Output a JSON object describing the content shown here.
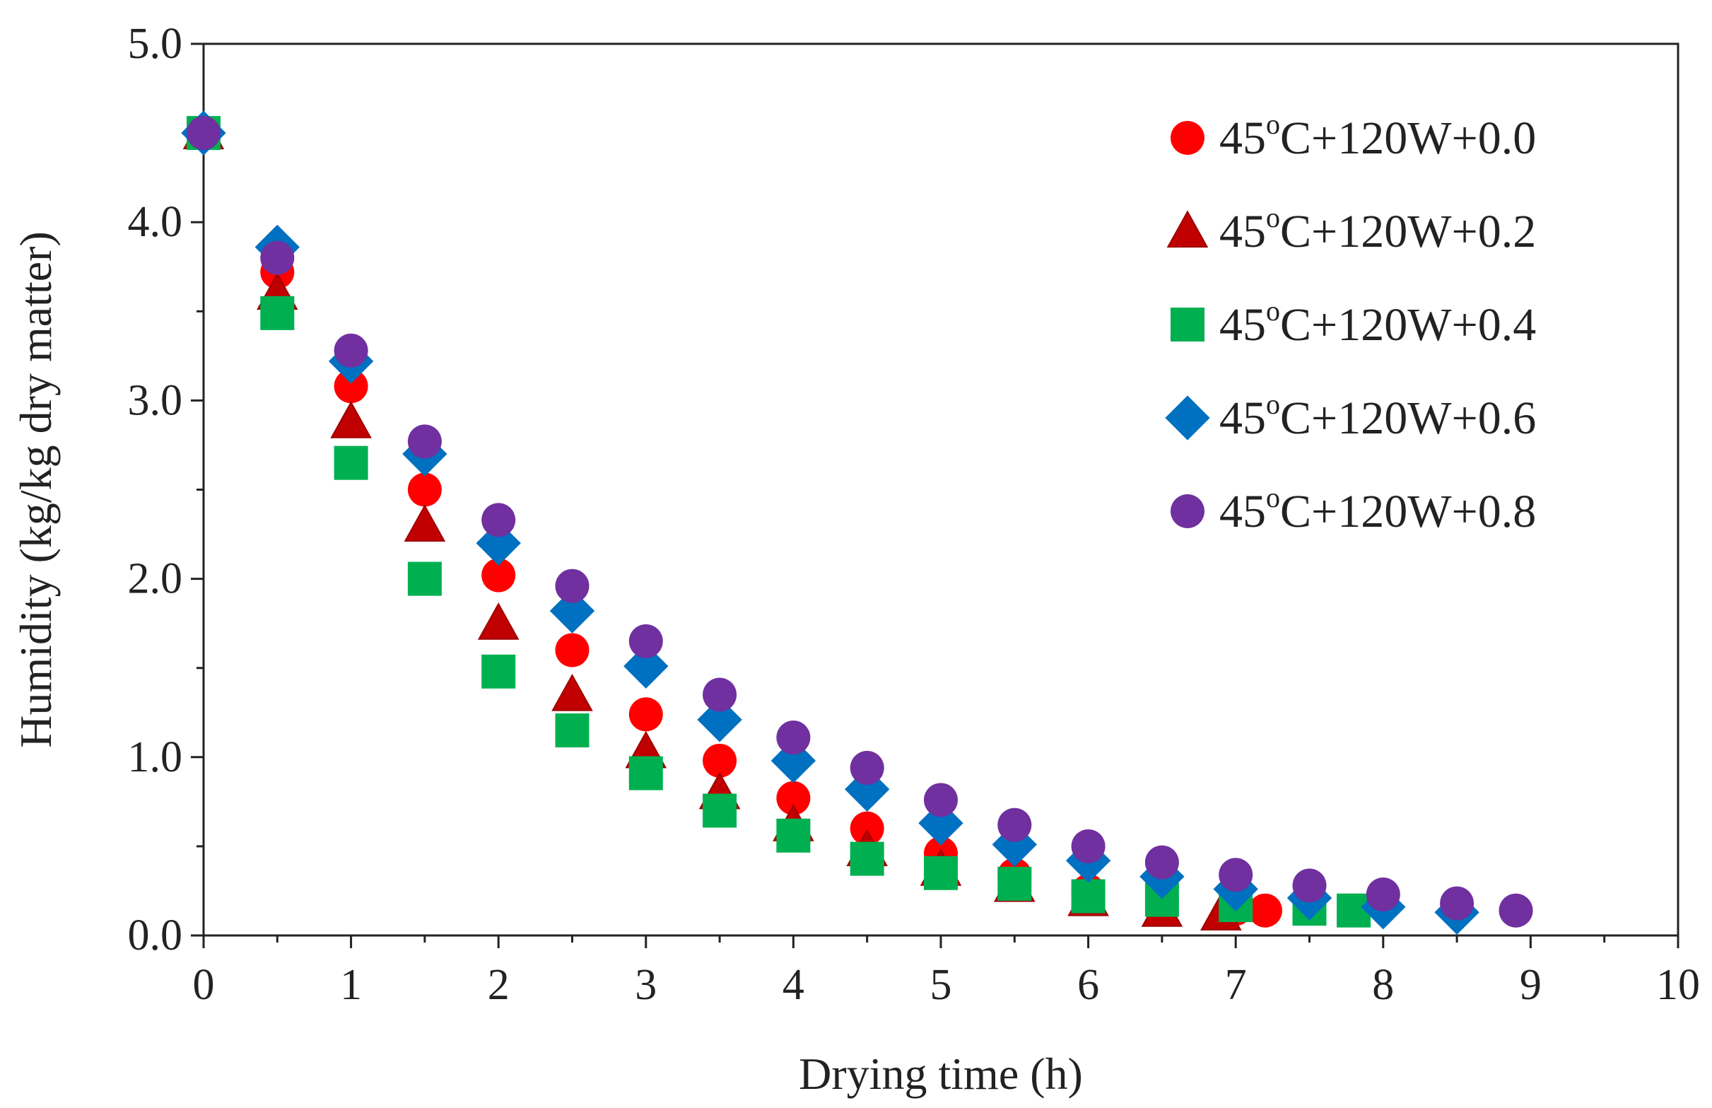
{
  "chart_data": {
    "type": "scatter",
    "title": "",
    "xlabel": "Drying time (h)",
    "ylabel": "Humidity (kg/kg dry matter)",
    "xlim": [
      0,
      10
    ],
    "ylim": [
      0,
      5.0
    ],
    "x_ticks": [
      "0",
      "1",
      "2",
      "3",
      "4",
      "5",
      "6",
      "7",
      "8",
      "9",
      "10"
    ],
    "y_ticks": [
      "0.0",
      "1.0",
      "2.0",
      "3.0",
      "4.0",
      "5.0"
    ],
    "grid": false,
    "legend_position": "top-right",
    "series": [
      {
        "name": "45°C+120W+0.0",
        "label_prefix": "45",
        "label_sup": "o",
        "label_suffix": "C+120W+0.0",
        "marker": "circle",
        "color": "#ff0000",
        "x": [
          0,
          0.5,
          1,
          1.5,
          2,
          2.5,
          3,
          3.5,
          4,
          4.5,
          5,
          5.5,
          6,
          6.5,
          7,
          7.2
        ],
        "y": [
          4.5,
          3.72,
          3.08,
          2.5,
          2.02,
          1.6,
          1.24,
          0.98,
          0.77,
          0.6,
          0.46,
          0.34,
          0.25,
          0.18,
          0.15,
          0.14
        ]
      },
      {
        "name": "45°C+120W+0.2",
        "label_prefix": "45",
        "label_sup": "o",
        "label_suffix": "C+120W+0.2",
        "marker": "triangle",
        "color": "#c00000",
        "x": [
          0,
          0.5,
          1,
          1.5,
          2,
          2.5,
          3,
          3.5,
          4,
          4.5,
          5,
          5.5,
          6,
          6.5,
          6.9
        ],
        "y": [
          4.5,
          3.6,
          2.88,
          2.3,
          1.75,
          1.35,
          1.03,
          0.8,
          0.62,
          0.48,
          0.37,
          0.28,
          0.2,
          0.14,
          0.12
        ]
      },
      {
        "name": "45°C+120W+0.4",
        "label_prefix": "45",
        "label_sup": "o",
        "label_suffix": "C+120W+0.4",
        "marker": "square",
        "color": "#00b050",
        "x": [
          0,
          0.5,
          1,
          1.5,
          2,
          2.5,
          3,
          3.5,
          4,
          4.5,
          5,
          5.5,
          6,
          6.5,
          7,
          7.5,
          7.8
        ],
        "y": [
          4.5,
          3.49,
          2.65,
          2.0,
          1.48,
          1.15,
          0.91,
          0.7,
          0.56,
          0.43,
          0.35,
          0.29,
          0.22,
          0.2,
          0.17,
          0.15,
          0.14
        ]
      },
      {
        "name": "45°C+120W+0.6",
        "label_prefix": "45",
        "label_sup": "o",
        "label_suffix": "C+120W+0.6",
        "marker": "diamond",
        "color": "#0070c0",
        "x": [
          0,
          0.5,
          1,
          1.5,
          2,
          2.5,
          3,
          3.5,
          4,
          4.5,
          5,
          5.5,
          6,
          6.5,
          7,
          7.5,
          8,
          8.5
        ],
        "y": [
          4.5,
          3.86,
          3.22,
          2.7,
          2.2,
          1.82,
          1.51,
          1.21,
          0.98,
          0.82,
          0.63,
          0.51,
          0.42,
          0.33,
          0.26,
          0.21,
          0.16,
          0.13
        ]
      },
      {
        "name": "45°C+120W+0.8",
        "label_prefix": "45",
        "label_sup": "o",
        "label_suffix": "C+120W+0.8",
        "marker": "circle",
        "color": "#7030a0",
        "x": [
          0,
          0.5,
          1,
          1.5,
          2,
          2.5,
          3,
          3.5,
          4,
          4.5,
          5,
          5.5,
          6,
          6.5,
          7,
          7.5,
          8,
          8.5,
          8.9
        ],
        "y": [
          4.5,
          3.8,
          3.28,
          2.77,
          2.33,
          1.96,
          1.65,
          1.35,
          1.11,
          0.94,
          0.76,
          0.62,
          0.5,
          0.41,
          0.34,
          0.28,
          0.23,
          0.18,
          0.14
        ]
      }
    ]
  }
}
